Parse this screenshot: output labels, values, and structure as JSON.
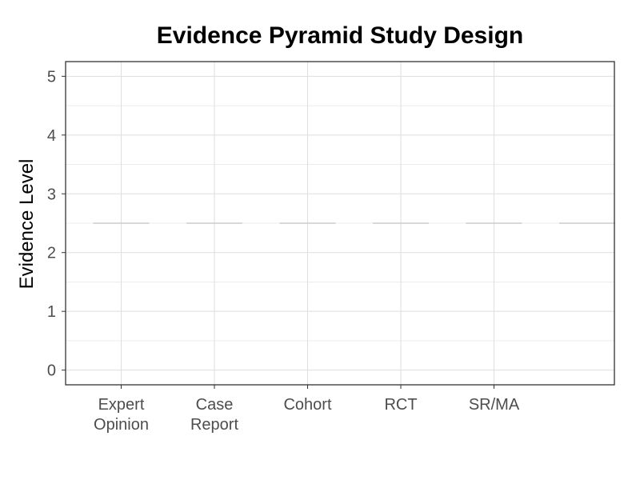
{
  "chart_data": {
    "type": "bar",
    "title": "Evidence Pyramid Study Design",
    "xlabel": "",
    "ylabel": "Evidence Level",
    "categories": [
      "Expert\nOpinion",
      "Case\nReport",
      "Cohort",
      "RCT",
      "SR/MA",
      ""
    ],
    "values": [
      2.5,
      2.5,
      2.5,
      2.5,
      2.5,
      2.5
    ],
    "yticks": [
      "0",
      "1",
      "2",
      "3",
      "4",
      "5"
    ],
    "ylim": [
      -0.25,
      5.25
    ],
    "grid": true,
    "colors": {
      "mark": "#cccccc",
      "grid_major": "#dedede",
      "grid_minor": "#ececec",
      "panel_border": "#333333",
      "tick_text": "#4d4d4d"
    }
  }
}
